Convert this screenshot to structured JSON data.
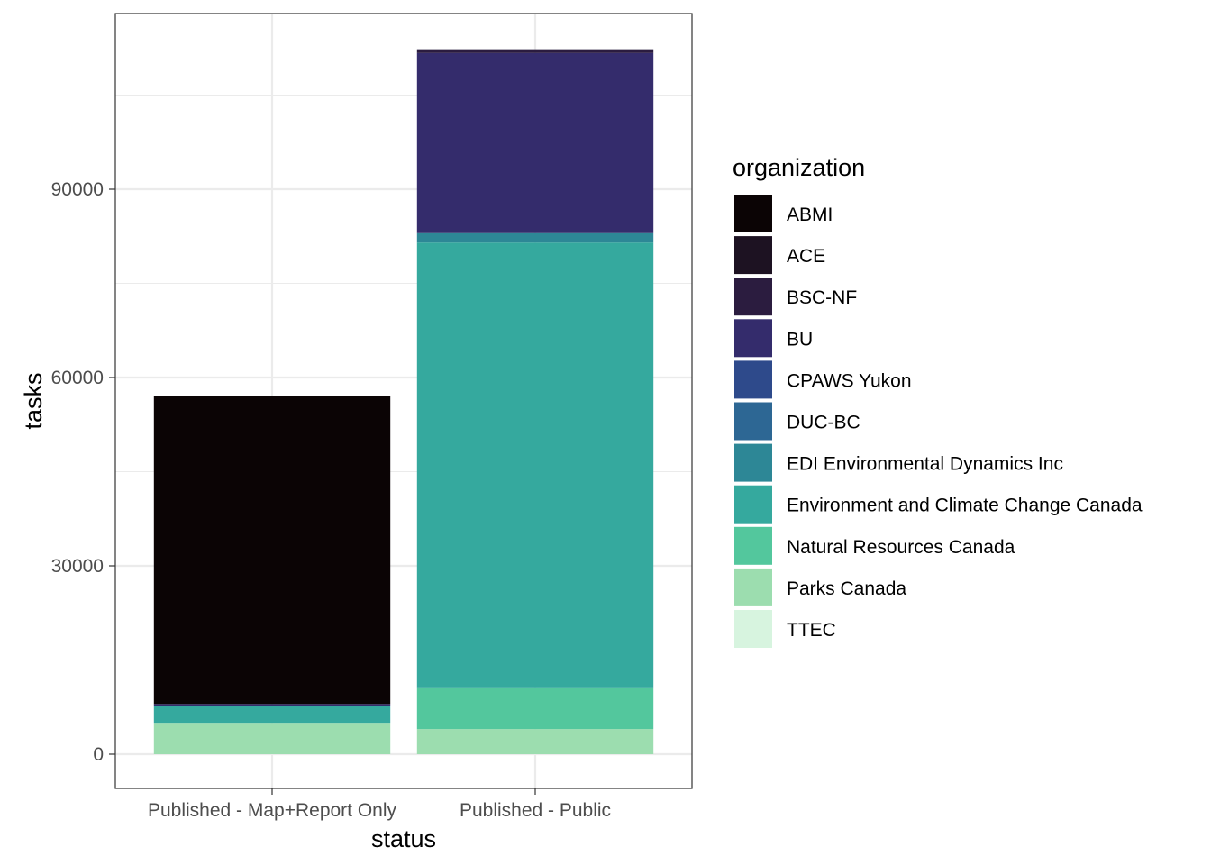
{
  "chart_data": {
    "type": "bar",
    "stacked": true,
    "categories": [
      "Published - Map+Report Only",
      "Published - Public"
    ],
    "xlabel": "status",
    "ylabel": "tasks",
    "ylim": [
      0,
      113000
    ],
    "yticks": [
      0,
      30000,
      60000,
      90000
    ],
    "ytick_labels": [
      "0",
      "30000",
      "60000",
      "90000"
    ],
    "grid": true,
    "legend_title": "organization",
    "legend_position": "right",
    "series": [
      {
        "name": "ABMI",
        "color": "#0b0405",
        "values": [
          49000,
          0
        ]
      },
      {
        "name": "ACE",
        "color": "#1d1222",
        "values": [
          0,
          0
        ]
      },
      {
        "name": "BSC-NF",
        "color": "#2b1c3f",
        "values": [
          0,
          600
        ]
      },
      {
        "name": "BU",
        "color": "#342c6c",
        "values": [
          300,
          28700
        ]
      },
      {
        "name": "CPAWS Yukon",
        "color": "#2e4a8b",
        "values": [
          0,
          0
        ]
      },
      {
        "name": "DUC-BC",
        "color": "#2d6794",
        "values": [
          0,
          0
        ]
      },
      {
        "name": "EDI Environmental Dynamics Inc",
        "color": "#2d8796",
        "values": [
          0,
          1500
        ]
      },
      {
        "name": "Environment and Climate Change Canada",
        "color": "#35a99e",
        "values": [
          2700,
          71000
        ]
      },
      {
        "name": "Natural Resources Canada",
        "color": "#53c79d",
        "values": [
          0,
          6500
        ]
      },
      {
        "name": "Parks Canada",
        "color": "#9cddaf",
        "values": [
          5000,
          4000
        ]
      },
      {
        "name": "TTEC",
        "color": "#d7f4df",
        "values": [
          0,
          0
        ]
      }
    ]
  }
}
